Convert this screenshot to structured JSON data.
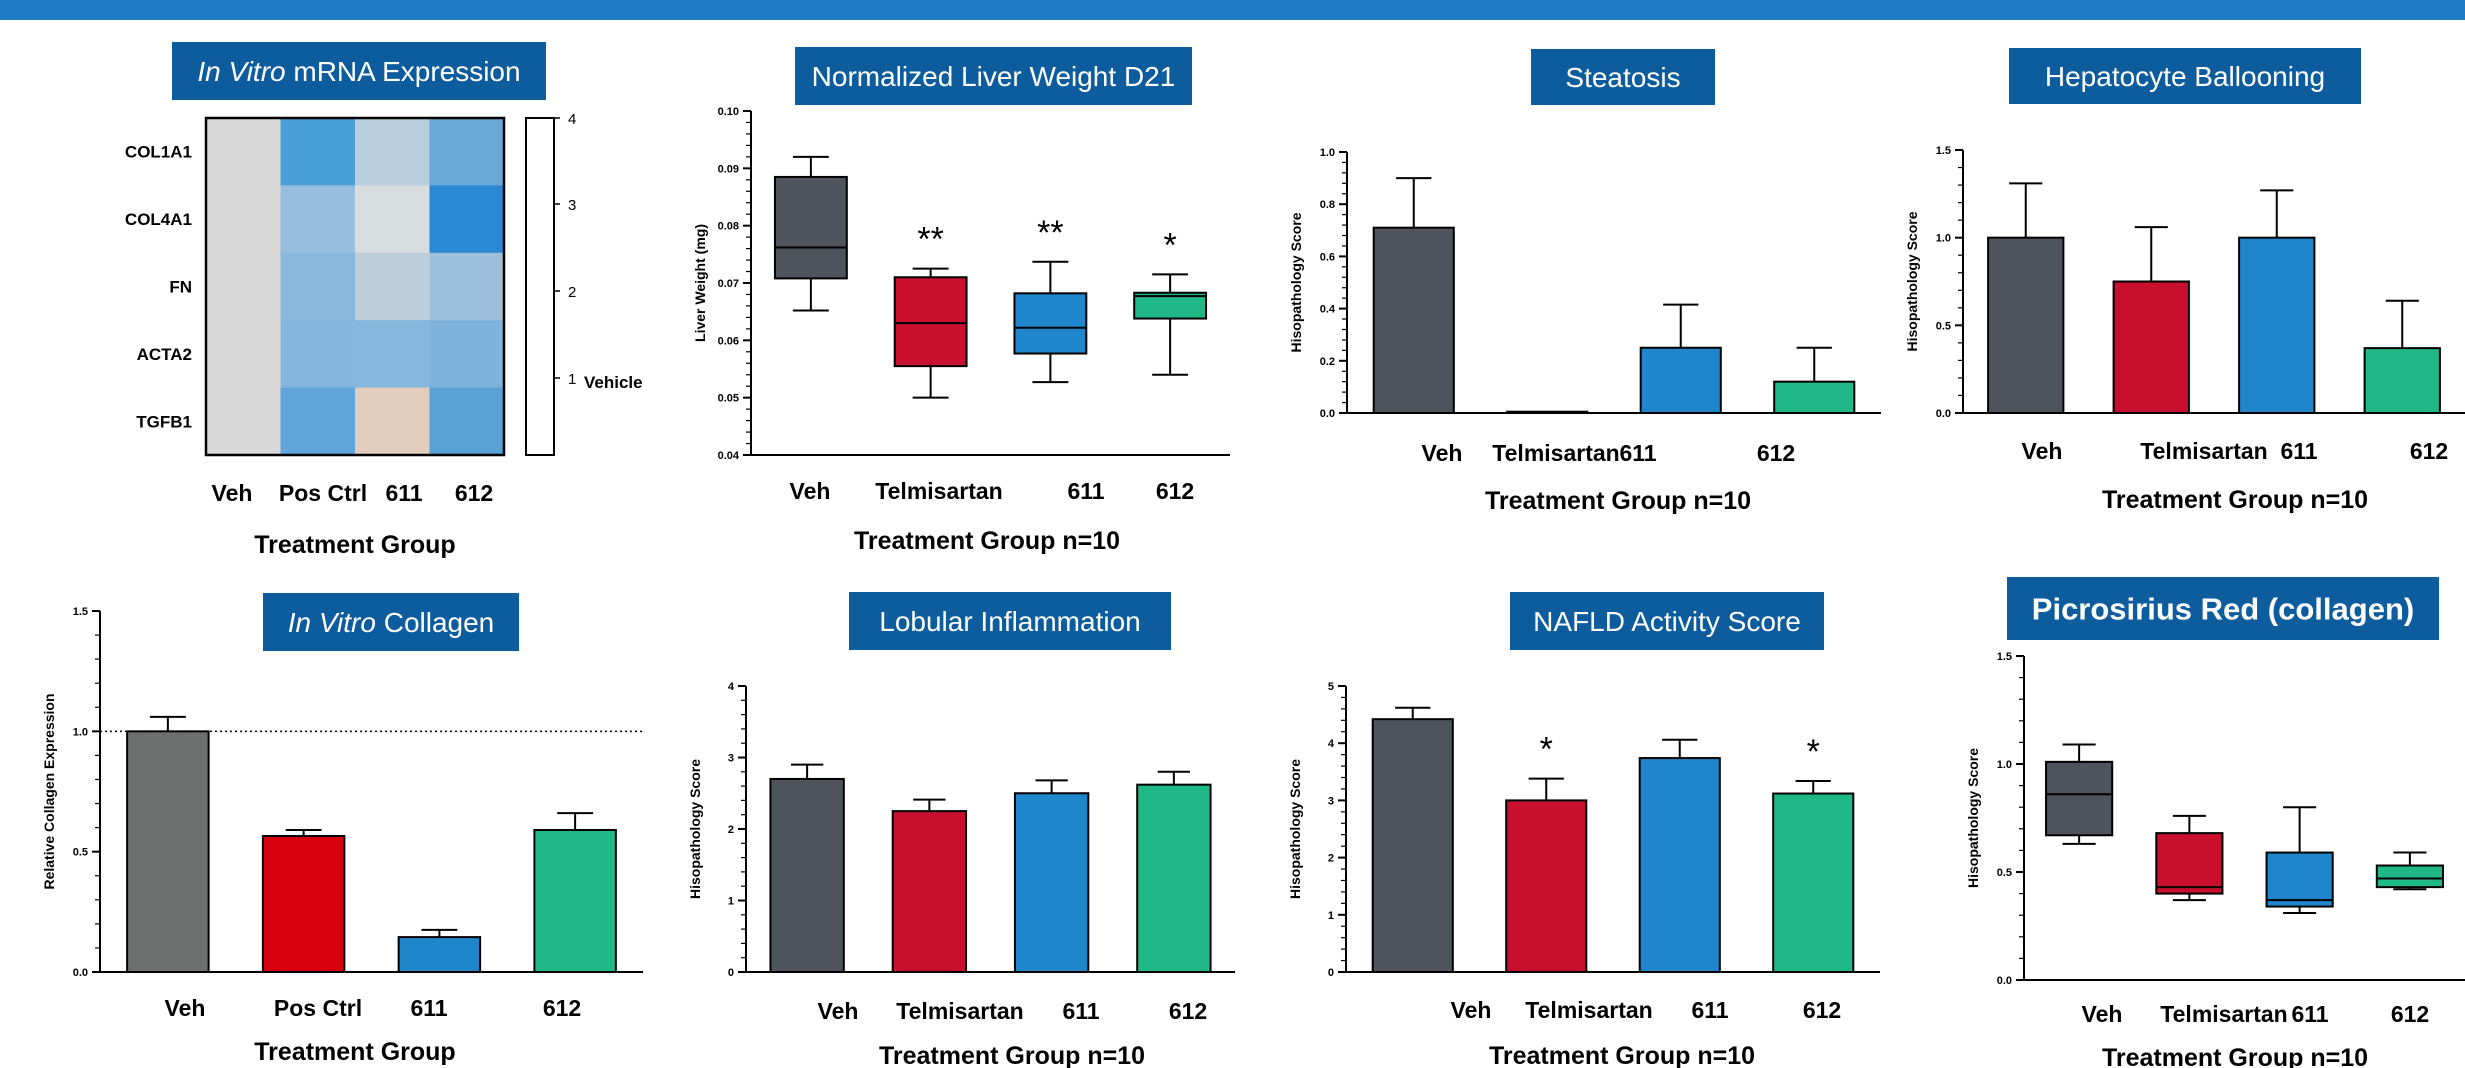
{
  "colors": {
    "veh": "#4e535c",
    "red": "#c8102e",
    "blue": "#1f86cc",
    "green": "#21b888",
    "gray_invitro": "#6e7070",
    "red_invitro": "#d6000f",
    "banner": "#0d5c9e",
    "topbar": "#1f7cc4"
  },
  "charts": [
    {
      "id": "mrna",
      "type": "heatmap",
      "title_italic": "In Vitro",
      "title_rest": " mRNA Expression",
      "row_labels": [
        "COL1A1",
        "COL4A1",
        "FN",
        "ACTA2",
        "TGFB1"
      ],
      "col_labels": [
        "Veh",
        "Pos Ctrl",
        "611",
        "612"
      ],
      "xlabel": "Treatment Group",
      "colorbar_ticks": [
        "4",
        "3",
        "2",
        "1"
      ],
      "colorbar_label": "Vehicle",
      "cells": [
        [
          "#d9d9d9",
          "#4a9fd8",
          "#b9cedc",
          "#6aaad8"
        ],
        [
          "#d9d9d9",
          "#97bfdd",
          "#d8dde0",
          "#2b89d4"
        ],
        [
          "#d9d9d9",
          "#8ab8dd",
          "#bdcedb",
          "#9ec0db"
        ],
        [
          "#d9d9d9",
          "#84b6de",
          "#86b7dd",
          "#80b3dc"
        ],
        [
          "#d9d9d9",
          "#60a6da",
          "#e2cdbf",
          "#58a2d6"
        ]
      ]
    },
    {
      "id": "liver",
      "type": "box",
      "title": "Normalized Liver Weight D21",
      "ylabel": "Liver Weight (mg)",
      "xlabel": "Treatment Group n=10",
      "ylim": [
        0.04,
        0.1
      ],
      "ticks": [
        "0.04",
        "0.05",
        "0.06",
        "0.07",
        "0.08",
        "0.09",
        "0.10"
      ],
      "categories": [
        "Veh",
        "Telmisartan",
        "611",
        "612"
      ],
      "boxes": [
        {
          "min": 0.0652,
          "q1": 0.0708,
          "median": 0.0762,
          "q3": 0.0885,
          "max": 0.092
        },
        {
          "min": 0.05,
          "q1": 0.0555,
          "median": 0.063,
          "q3": 0.071,
          "max": 0.0725
        },
        {
          "min": 0.0527,
          "q1": 0.0577,
          "median": 0.0622,
          "q3": 0.0682,
          "max": 0.0737
        },
        {
          "min": 0.054,
          "q1": 0.0638,
          "median": 0.0677,
          "q3": 0.0683,
          "max": 0.0715
        }
      ],
      "sig": [
        "",
        "**",
        "**",
        "*"
      ]
    },
    {
      "id": "steatosis",
      "type": "bar",
      "title": "Steatosis",
      "ylabel": "Hisopathology Score",
      "xlabel": "Treatment Group n=10",
      "ylim": [
        0,
        1.0
      ],
      "ticks": [
        "0.0",
        "0.2",
        "0.4",
        "0.6",
        "0.8",
        "1.0"
      ],
      "categories": [
        "Veh",
        "Telmisartan",
        "611",
        "612"
      ],
      "values": [
        0.71,
        0.005,
        0.25,
        0.12
      ],
      "errors": [
        0.19,
        0,
        0.165,
        0.13
      ],
      "sig": [
        "",
        "",
        "",
        ""
      ]
    },
    {
      "id": "ballooning",
      "type": "bar",
      "title": "Hepatocyte Ballooning",
      "ylabel": "Hisopathology Score",
      "xlabel": "Treatment Group n=10",
      "ylim": [
        0,
        1.5
      ],
      "ticks": [
        "0.0",
        "0.5",
        "1.0",
        "1.5"
      ],
      "categories": [
        "Veh",
        "Telmisartan",
        "611",
        "612"
      ],
      "values": [
        1.0,
        0.75,
        1.0,
        0.37
      ],
      "errors": [
        0.31,
        0.31,
        0.27,
        0.27
      ],
      "sig": [
        "",
        "",
        "",
        ""
      ]
    },
    {
      "id": "collagen",
      "type": "bar",
      "title_italic": "In Vitro",
      "title_rest": " Collagen",
      "ylabel": "Relative Collagen Expression",
      "xlabel": "Treatment Group",
      "ylim": [
        0,
        1.5
      ],
      "ticks": [
        "0.0",
        "0.5",
        "1.0",
        "1.5"
      ],
      "refline": 1.0,
      "categories": [
        "Veh",
        "Pos Ctrl",
        "611",
        "612"
      ],
      "values": [
        1.0,
        0.565,
        0.145,
        0.59
      ],
      "errors": [
        0.06,
        0.025,
        0.03,
        0.07
      ],
      "sig": [
        "",
        "",
        "",
        ""
      ]
    },
    {
      "id": "lobular",
      "type": "bar",
      "title": "Lobular Inflammation",
      "ylabel": "Hisopathology Score",
      "xlabel": "Treatment Group n=10",
      "ylim": [
        0,
        4
      ],
      "ticks": [
        "0",
        "1",
        "2",
        "3",
        "4"
      ],
      "categories": [
        "Veh",
        "Telmisartan",
        "611",
        "612"
      ],
      "values": [
        2.7,
        2.25,
        2.5,
        2.62
      ],
      "errors": [
        0.2,
        0.16,
        0.18,
        0.18
      ],
      "sig": [
        "",
        "",
        "",
        ""
      ]
    },
    {
      "id": "nafld",
      "type": "bar",
      "title": "NAFLD Activity Score",
      "ylabel": "Hisopathology Score",
      "xlabel": "Treatment Group n=10",
      "ylim": [
        0,
        5
      ],
      "ticks": [
        "0",
        "1",
        "2",
        "3",
        "4",
        "5"
      ],
      "categories": [
        "Veh",
        "Telmisartan",
        "611",
        "612"
      ],
      "values": [
        4.42,
        3.0,
        3.74,
        3.12
      ],
      "errors": [
        0.2,
        0.38,
        0.32,
        0.22
      ],
      "sig": [
        "",
        "*",
        "",
        "*"
      ]
    },
    {
      "id": "picrosirius",
      "type": "box",
      "title": "Picrosirius Red (collagen)",
      "ylabel": "Hisopathology Score",
      "xlabel": "Treatment Group n=10",
      "ylim": [
        0,
        1.5
      ],
      "ticks": [
        "0.0",
        "0.5",
        "1.0",
        "1.5"
      ],
      "categories": [
        "Veh",
        "Telmisartan",
        "611",
        "612"
      ],
      "boxes": [
        {
          "min": 0.63,
          "q1": 0.67,
          "median": 0.86,
          "q3": 1.01,
          "max": 1.09
        },
        {
          "min": 0.37,
          "q1": 0.4,
          "median": 0.43,
          "q3": 0.68,
          "max": 0.76
        },
        {
          "min": 0.31,
          "q1": 0.34,
          "median": 0.37,
          "q3": 0.59,
          "max": 0.8
        },
        {
          "min": 0.42,
          "q1": 0.43,
          "median": 0.47,
          "q3": 0.53,
          "max": 0.59
        }
      ],
      "sig": [
        "",
        "",
        "",
        ""
      ]
    }
  ]
}
